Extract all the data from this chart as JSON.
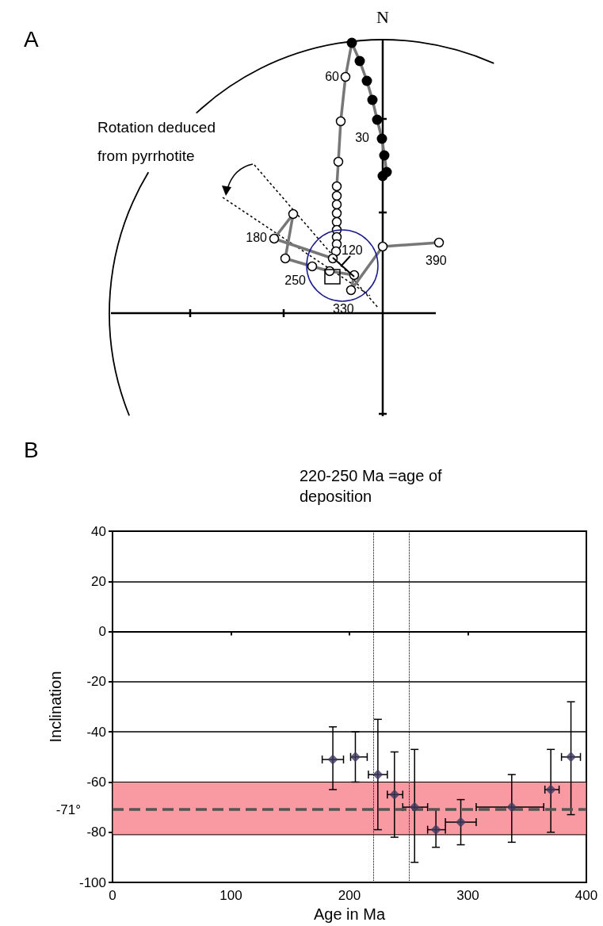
{
  "chart_data": [
    {
      "type": "other",
      "title": "A",
      "annotations": [
        "N",
        "Rotation deduced from pyrrhotite",
        "60",
        "30",
        "180",
        "120",
        "250",
        "330",
        "390"
      ]
    },
    {
      "type": "scatter",
      "title": "B",
      "xlabel": "Age in Ma",
      "ylabel": "Inclination",
      "marker": "diamond",
      "grid": "y",
      "x": [
        186,
        205,
        224,
        238,
        255,
        273,
        294,
        337,
        370,
        387
      ],
      "series": [
        {
          "color": "#3f3a5e",
          "values": [
            -51,
            -50,
            -57,
            -65,
            -70,
            -79,
            -76,
            -70,
            -63,
            -50
          ],
          "errors": [
            [
              -63,
              -38
            ],
            [
              -60,
              -40
            ],
            [
              -79,
              -35
            ],
            [
              -82,
              -48
            ],
            [
              -92,
              -47
            ],
            [
              -86,
              -71
            ],
            [
              -85,
              -67
            ],
            [
              -84,
              -57
            ],
            [
              -80,
              -47
            ],
            [
              -73,
              -28
            ]
          ],
          "xerrors": [
            [
              177,
              195
            ],
            [
              201,
              215
            ],
            [
              216,
              232
            ],
            [
              232,
              245
            ],
            [
              245,
              266
            ],
            [
              266,
              281
            ],
            [
              281,
              307
            ],
            [
              307,
              364
            ],
            [
              365,
              377
            ],
            [
              379,
              395
            ]
          ]
        }
      ],
      "xlim": [
        0,
        400
      ],
      "xticks": [
        0,
        100,
        200,
        300,
        400
      ],
      "ylim": [
        -100,
        40
      ],
      "yticks": [
        -100,
        -80,
        -60,
        -40,
        -20,
        0,
        20,
        40
      ],
      "ref_lines": [
        {
          "axis": "y",
          "value": -71,
          "label": "-71°",
          "color": "#555555",
          "line_style": "dashed"
        },
        {
          "axis": "x",
          "value": 220,
          "color": "#000000",
          "line_style": "dotted"
        },
        {
          "axis": "x",
          "value": 250,
          "color": "#000000",
          "line_style": "dotted"
        }
      ],
      "bands": [
        {
          "axis": "y",
          "from": -81,
          "to": -60,
          "color": "#f99aa3"
        }
      ],
      "annotations": [
        "220-250 Ma =age of deposition"
      ]
    }
  ]
}
